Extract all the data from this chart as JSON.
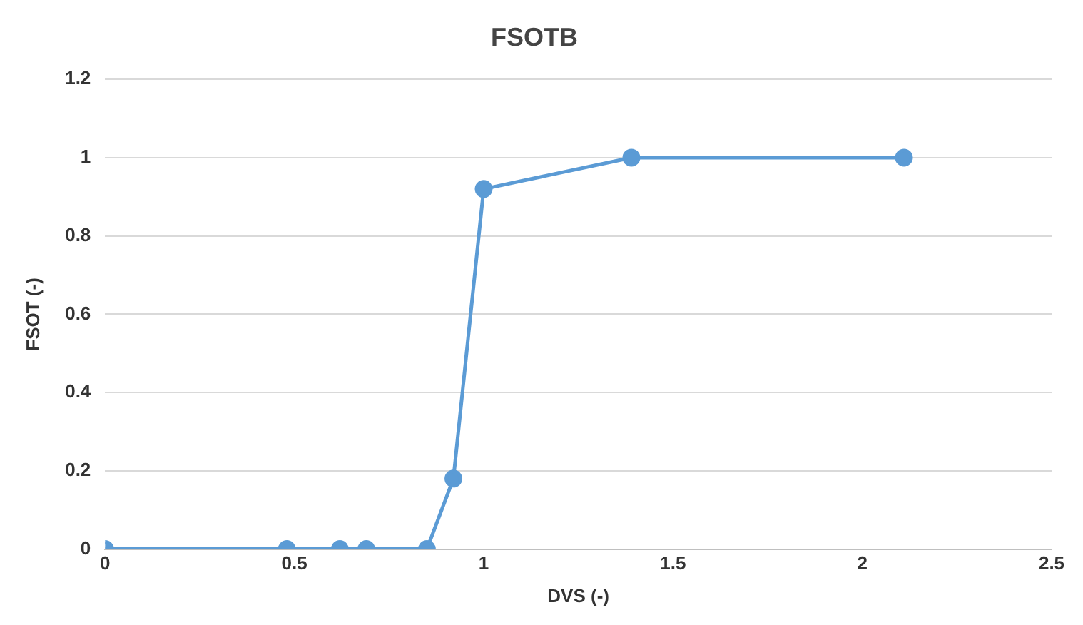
{
  "chart_data": {
    "type": "line",
    "title": "FSOTB",
    "xlabel": "DVS (-)",
    "ylabel": "FSOT (-)",
    "x": [
      0,
      0.48,
      0.62,
      0.69,
      0.85,
      0.92,
      1.0,
      1.39,
      2.11
    ],
    "series": [
      {
        "color": "#5b9bd5",
        "values": [
          0,
          0,
          0,
          0,
          0,
          0.18,
          0.92,
          1,
          1
        ]
      }
    ],
    "xlim": [
      0,
      2.5
    ],
    "xticks": [
      0,
      0.5,
      1,
      1.5,
      2,
      2.5
    ],
    "ylim": [
      0,
      1.2
    ],
    "yticks": [
      0,
      0.2,
      0.4,
      0.6,
      0.8,
      1,
      1.2
    ],
    "grid": "y",
    "legend": false,
    "marker": "circle",
    "line_style": "solid"
  }
}
